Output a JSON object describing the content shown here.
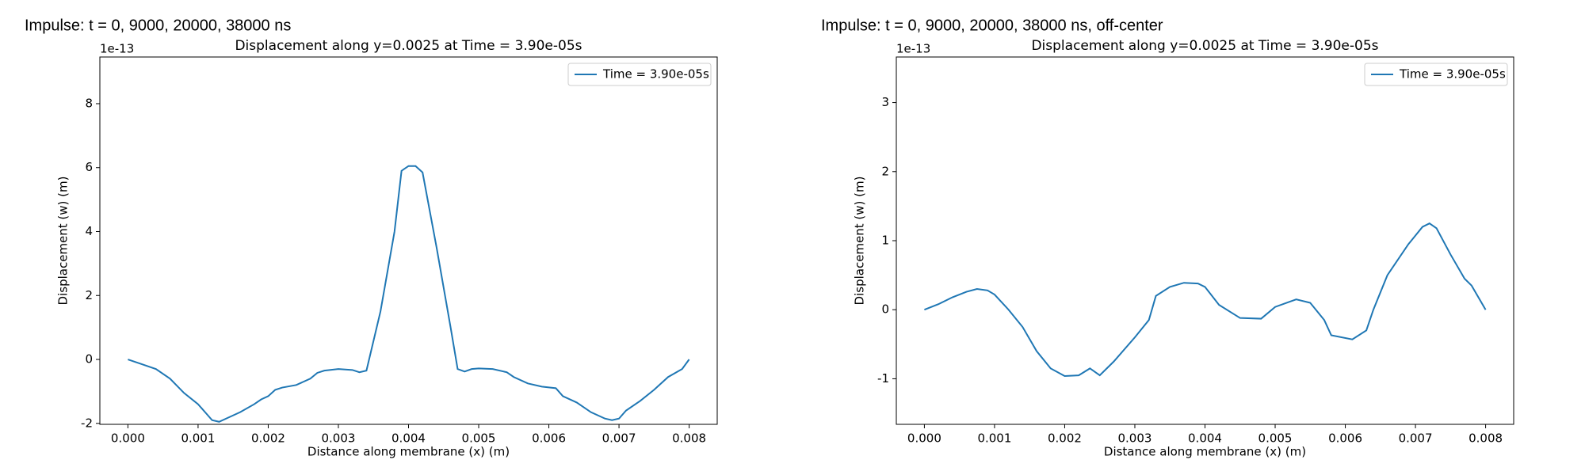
{
  "chart_data": [
    {
      "type": "line",
      "suptitle": "Impulse: t = 0, 9000, 20000, 38000 ns",
      "title": "Displacement along y=0.0025 at Time = 3.90e-05s",
      "x_label": "Distance along membrane (x) (m)",
      "y_label": "Displacement (w) (m)",
      "y_offset_label": "1e-13",
      "legend": "upper right",
      "x": [
        0,
        0.0002,
        0.0004,
        0.0006,
        0.0008,
        0.001,
        0.0011,
        0.0012,
        0.0013,
        0.0014,
        0.0016,
        0.0018,
        0.0019,
        0.002,
        0.0021,
        0.0022,
        0.0024,
        0.0026,
        0.0027,
        0.0028,
        0.003,
        0.0032,
        0.0033,
        0.0034,
        0.0036,
        0.0038,
        0.0039,
        0.004,
        0.0041,
        0.0042,
        0.0044,
        0.0046,
        0.0047,
        0.0048,
        0.0049,
        0.005,
        0.0052,
        0.0054,
        0.0055,
        0.0057,
        0.0059,
        0.0061,
        0.0062,
        0.0064,
        0.0066,
        0.0068,
        0.0069,
        0.007,
        0.0071,
        0.0073,
        0.0075,
        0.0077,
        0.0079,
        0.008
      ],
      "series": [
        {
          "name": "Time = 3.90e-05s",
          "color": "#1f77b4",
          "values": [
            0,
            -0.15,
            -0.3,
            -0.6,
            -1.05,
            -1.4,
            -1.65,
            -1.9,
            -1.95,
            -1.85,
            -1.65,
            -1.4,
            -1.25,
            -1.15,
            -0.95,
            -0.88,
            -0.8,
            -0.6,
            -0.42,
            -0.35,
            -0.3,
            -0.33,
            -0.4,
            -0.35,
            1.5,
            4,
            5.9,
            6.05,
            6.05,
            5.85,
            3.5,
            1.0,
            -0.3,
            -0.38,
            -0.3,
            -0.28,
            -0.3,
            -0.4,
            -0.55,
            -0.75,
            -0.85,
            -0.9,
            -1.15,
            -1.35,
            -1.65,
            -1.85,
            -1.9,
            -1.85,
            -1.6,
            -1.3,
            -0.95,
            -0.55,
            -0.3,
            0
          ]
        }
      ],
      "xlim": [
        -0.0004,
        0.0084
      ],
      "ylim": [
        -2.03,
        9.46
      ],
      "xticks": [
        {
          "value": 0,
          "label": "0.000"
        },
        {
          "value": 0.001,
          "label": "0.001"
        },
        {
          "value": 0.002,
          "label": "0.002"
        },
        {
          "value": 0.003,
          "label": "0.003"
        },
        {
          "value": 0.004,
          "label": "0.004"
        },
        {
          "value": 0.005,
          "label": "0.005"
        },
        {
          "value": 0.006,
          "label": "0.006"
        },
        {
          "value": 0.007,
          "label": "0.007"
        },
        {
          "value": 0.008,
          "label": "0.008"
        }
      ],
      "yticks": [
        -2,
        0,
        2,
        4,
        6,
        8
      ]
    },
    {
      "type": "line",
      "suptitle": "Impulse: t = 0, 9000, 20000, 38000 ns, off-center",
      "title": "Displacement along y=0.0025 at Time = 3.90e-05s",
      "x_label": "Distance along membrane (x) (m)",
      "y_label": "Displacement (w) (m)",
      "y_offset_label": "1e-13",
      "legend": "upper right",
      "x": [
        0,
        0.0002,
        0.0004,
        0.0006,
        0.00075,
        0.0009,
        0.001,
        0.0012,
        0.0014,
        0.0016,
        0.0018,
        0.002,
        0.0022,
        0.00236,
        0.0025,
        0.0027,
        0.003,
        0.0032,
        0.0033,
        0.0035,
        0.0037,
        0.0039,
        0.004,
        0.0042,
        0.0045,
        0.0048,
        0.005,
        0.0053,
        0.0055,
        0.0057,
        0.0058,
        0.0061,
        0.0063,
        0.0064,
        0.0066,
        0.0069,
        0.0071,
        0.0072,
        0.0073,
        0.0075,
        0.0077,
        0.0078,
        0.008
      ],
      "series": [
        {
          "name": "Time = 3.90e-05s",
          "color": "#1f77b4",
          "values": [
            0,
            0.08,
            0.18,
            0.26,
            0.3,
            0.28,
            0.22,
            0.0,
            -0.25,
            -0.6,
            -0.85,
            -0.96,
            -0.95,
            -0.85,
            -0.95,
            -0.75,
            -0.4,
            -0.15,
            0.2,
            0.33,
            0.39,
            0.38,
            0.33,
            0.07,
            -0.12,
            -0.13,
            0.04,
            0.15,
            0.1,
            -0.15,
            -0.37,
            -0.43,
            -0.3,
            0,
            0.5,
            0.95,
            1.2,
            1.25,
            1.18,
            0.8,
            0.45,
            0.35,
            0
          ]
        }
      ],
      "xlim": [
        -0.0004,
        0.0084
      ],
      "ylim": [
        -1.66,
        3.66
      ],
      "xticks": [
        {
          "value": 0,
          "label": "0.000"
        },
        {
          "value": 0.001,
          "label": "0.001"
        },
        {
          "value": 0.002,
          "label": "0.002"
        },
        {
          "value": 0.003,
          "label": "0.003"
        },
        {
          "value": 0.004,
          "label": "0.004"
        },
        {
          "value": 0.005,
          "label": "0.005"
        },
        {
          "value": 0.006,
          "label": "0.006"
        },
        {
          "value": 0.007,
          "label": "0.007"
        },
        {
          "value": 0.008,
          "label": "0.008"
        }
      ],
      "yticks": [
        -1,
        0,
        1,
        2,
        3
      ]
    }
  ]
}
